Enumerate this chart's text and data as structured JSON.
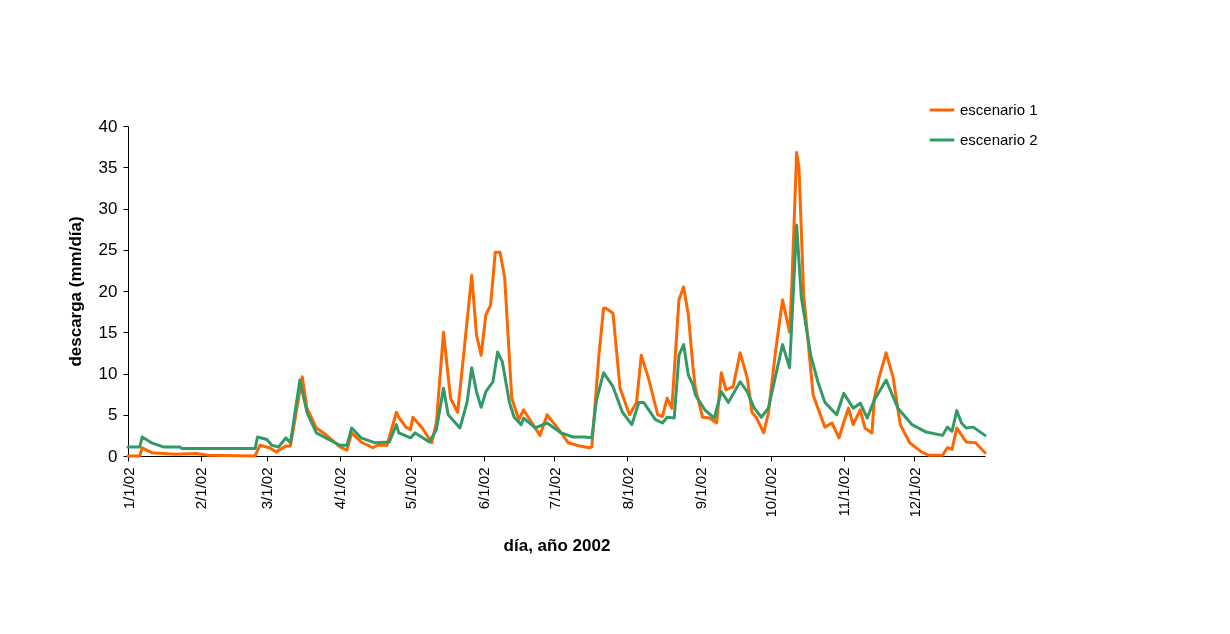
{
  "chart_data": {
    "type": "line",
    "xlabel": "día, año 2002",
    "ylabel": "descarga (mm/día)",
    "xlim": [
      "2002-01-01",
      "2002-12-31"
    ],
    "xticks": [
      {
        "value": "2002-01-01",
        "label": "1/1/02"
      },
      {
        "value": "2002-02-01",
        "label": "2/1/02"
      },
      {
        "value": "2002-03-01",
        "label": "3/1/02"
      },
      {
        "value": "2002-04-01",
        "label": "4/1/02"
      },
      {
        "value": "2002-05-01",
        "label": "5/1/02"
      },
      {
        "value": "2002-06-01",
        "label": "6/1/02"
      },
      {
        "value": "2002-07-01",
        "label": "7/1/02"
      },
      {
        "value": "2002-08-01",
        "label": "8/1/02"
      },
      {
        "value": "2002-09-01",
        "label": "9/1/02"
      },
      {
        "value": "2002-10-01",
        "label": "10/1/02"
      },
      {
        "value": "2002-11-01",
        "label": "11/1/02"
      },
      {
        "value": "2002-12-01",
        "label": "12/1/02"
      }
    ],
    "ylim": [
      0,
      40
    ],
    "yticks": [
      0,
      5,
      10,
      15,
      20,
      25,
      30,
      35,
      40
    ],
    "grid": false,
    "legend": "top right",
    "series": [
      {
        "name": "escenario 1",
        "color": "#ff6600",
        "x": [
          "2002-01-01",
          "2002-01-06",
          "2002-01-07",
          "2002-01-11",
          "2002-01-21",
          "2002-01-30",
          "2002-02-04",
          "2002-02-24",
          "2002-02-26",
          "2002-03-02",
          "2002-03-05",
          "2002-03-09",
          "2002-03-11",
          "2002-03-16",
          "2002-03-18",
          "2002-03-22",
          "2002-03-26",
          "2002-04-01",
          "2002-04-04",
          "2002-04-06",
          "2002-04-10",
          "2002-04-15",
          "2002-04-17",
          "2002-04-21",
          "2002-04-25",
          "2002-04-26",
          "2002-04-29",
          "2002-05-01",
          "2002-05-02",
          "2002-05-06",
          "2002-05-10",
          "2002-05-12",
          "2002-05-15",
          "2002-05-18",
          "2002-05-21",
          "2002-05-23",
          "2002-05-27",
          "2002-05-29",
          "2002-05-31",
          "2002-06-02",
          "2002-06-04",
          "2002-06-06",
          "2002-06-08",
          "2002-06-10",
          "2002-06-13",
          "2002-06-16",
          "2002-06-18",
          "2002-06-22",
          "2002-06-25",
          "2002-06-28",
          "2002-07-03",
          "2002-07-07",
          "2002-07-12",
          "2002-07-16",
          "2002-07-17",
          "2002-07-20",
          "2002-07-22",
          "2002-07-23",
          "2002-07-26",
          "2002-07-29",
          "2002-08-02",
          "2002-08-05",
          "2002-08-07",
          "2002-08-10",
          "2002-08-14",
          "2002-08-16",
          "2002-08-18",
          "2002-08-20",
          "2002-08-23",
          "2002-08-25",
          "2002-08-27",
          "2002-08-29",
          "2002-08-30",
          "2002-09-02",
          "2002-09-05",
          "2002-09-08",
          "2002-09-10",
          "2002-09-12",
          "2002-09-15",
          "2002-09-18",
          "2002-09-21",
          "2002-09-23",
          "2002-09-25",
          "2002-09-28",
          "2002-09-30",
          "2002-10-03",
          "2002-10-06",
          "2002-10-09",
          "2002-10-10",
          "2002-10-12",
          "2002-10-13",
          "2002-10-15",
          "2002-10-19",
          "2002-10-24",
          "2002-10-27",
          "2002-10-30",
          "2002-11-01",
          "2002-11-03",
          "2002-11-05",
          "2002-11-08",
          "2002-11-10",
          "2002-11-13",
          "2002-11-14",
          "2002-11-16",
          "2002-11-19",
          "2002-11-22",
          "2002-11-25",
          "2002-11-29",
          "2002-12-04",
          "2002-12-07",
          "2002-12-13",
          "2002-12-15",
          "2002-12-17",
          "2002-12-19",
          "2002-12-23",
          "2002-12-27",
          "2002-12-31"
        ],
        "values": [
          0,
          0,
          1.0,
          0.4,
          0.2,
          0.3,
          0.1,
          0,
          1.3,
          1.0,
          0.5,
          1.2,
          1.2,
          9.6,
          5.8,
          3.4,
          2.6,
          1.1,
          0.7,
          2.8,
          1.7,
          1.0,
          1.3,
          1.3,
          5.3,
          4.7,
          3.5,
          3.2,
          4.7,
          3.4,
          1.6,
          4.1,
          15.0,
          7.0,
          5.3,
          10.7,
          21.9,
          14.7,
          12.2,
          17.1,
          18.3,
          24.7,
          24.7,
          21.6,
          7.0,
          4.4,
          5.6,
          3.8,
          2.5,
          5.0,
          3.2,
          1.6,
          1.2,
          1.0,
          1.1,
          12.2,
          17.9,
          17.9,
          17.3,
          8.2,
          5.0,
          6.5,
          12.2,
          9.5,
          5.0,
          4.8,
          7.0,
          5.8,
          18.9,
          20.5,
          17.1,
          10.7,
          8.2,
          4.7,
          4.6,
          4.0,
          10.1,
          8.0,
          8.4,
          12.5,
          9.5,
          5.3,
          4.6,
          2.8,
          5.2,
          12.6,
          18.9,
          15.0,
          21.1,
          36.8,
          34.9,
          19.5,
          7.4,
          3.5,
          4.0,
          2.2,
          4.1,
          5.8,
          3.8,
          5.6,
          3.4,
          2.8,
          7.0,
          9.5,
          12.5,
          9.5,
          3.8,
          1.6,
          0.5,
          0.1,
          0.1,
          1.0,
          0.8,
          3.4,
          1.7,
          1.6,
          0.4
        ]
      },
      {
        "name": "escenario 2",
        "color": "#339966",
        "x": [
          "2002-01-01",
          "2002-01-06",
          "2002-01-07",
          "2002-01-11",
          "2002-01-16",
          "2002-01-23",
          "2002-01-24",
          "2002-02-24",
          "2002-02-25",
          "2002-03-01",
          "2002-03-03",
          "2002-03-06",
          "2002-03-09",
          "2002-03-11",
          "2002-03-15",
          "2002-03-18",
          "2002-03-22",
          "2002-03-26",
          "2002-04-01",
          "2002-04-04",
          "2002-04-06",
          "2002-04-10",
          "2002-04-16",
          "2002-04-22",
          "2002-04-25",
          "2002-04-26",
          "2002-05-01",
          "2002-05-03",
          "2002-05-09",
          "2002-05-12",
          "2002-05-15",
          "2002-05-17",
          "2002-05-22",
          "2002-05-25",
          "2002-05-27",
          "2002-05-29",
          "2002-05-31",
          "2002-06-02",
          "2002-06-05",
          "2002-06-07",
          "2002-06-09",
          "2002-06-12",
          "2002-06-14",
          "2002-06-17",
          "2002-06-18",
          "2002-06-23",
          "2002-06-28",
          "2002-07-04",
          "2002-07-09",
          "2002-07-14",
          "2002-07-17",
          "2002-07-19",
          "2002-07-22",
          "2002-07-26",
          "2002-07-30",
          "2002-08-03",
          "2002-08-06",
          "2002-08-08",
          "2002-08-13",
          "2002-08-16",
          "2002-08-18",
          "2002-08-21",
          "2002-08-23",
          "2002-08-25",
          "2002-08-27",
          "2002-08-29",
          "2002-08-30",
          "2002-09-03",
          "2002-09-07",
          "2002-09-10",
          "2002-09-13",
          "2002-09-18",
          "2002-09-21",
          "2002-09-24",
          "2002-09-27",
          "2002-09-30",
          "2002-10-06",
          "2002-10-09",
          "2002-10-12",
          "2002-10-14",
          "2002-10-18",
          "2002-10-21",
          "2002-10-24",
          "2002-10-29",
          "2002-11-01",
          "2002-11-05",
          "2002-11-08",
          "2002-11-11",
          "2002-11-14",
          "2002-11-19",
          "2002-11-24",
          "2002-11-30",
          "2002-12-06",
          "2002-12-13",
          "2002-12-15",
          "2002-12-17",
          "2002-12-19",
          "2002-12-21",
          "2002-12-23",
          "2002-12-26",
          "2002-12-31"
        ],
        "values": [
          1.1,
          1.1,
          2.3,
          1.6,
          1.1,
          1.1,
          0.9,
          0.9,
          2.3,
          2.0,
          1.3,
          1.1,
          2.2,
          1.6,
          9.2,
          5.3,
          2.8,
          2.2,
          1.3,
          1.3,
          3.4,
          2.2,
          1.6,
          1.7,
          3.8,
          2.8,
          2.2,
          2.8,
          1.7,
          3.2,
          8.2,
          5.0,
          3.4,
          6.5,
          10.7,
          7.8,
          5.9,
          7.8,
          9.0,
          12.6,
          11.4,
          6.5,
          4.7,
          3.8,
          4.6,
          3.4,
          4.0,
          2.8,
          2.3,
          2.3,
          2.2,
          6.8,
          10.1,
          8.4,
          5.3,
          3.8,
          6.5,
          6.5,
          4.4,
          4.0,
          4.7,
          4.6,
          12.2,
          13.5,
          9.8,
          8.6,
          7.4,
          5.6,
          4.6,
          7.8,
          6.5,
          9.0,
          7.8,
          5.8,
          4.7,
          5.8,
          13.5,
          10.7,
          28.0,
          19.2,
          12.2,
          9.0,
          6.5,
          5.0,
          7.6,
          5.8,
          6.4,
          4.6,
          6.8,
          9.2,
          5.8,
          3.8,
          2.9,
          2.5,
          3.5,
          3.0,
          5.5,
          4.0,
          3.4,
          3.5,
          2.5
        ]
      }
    ]
  }
}
